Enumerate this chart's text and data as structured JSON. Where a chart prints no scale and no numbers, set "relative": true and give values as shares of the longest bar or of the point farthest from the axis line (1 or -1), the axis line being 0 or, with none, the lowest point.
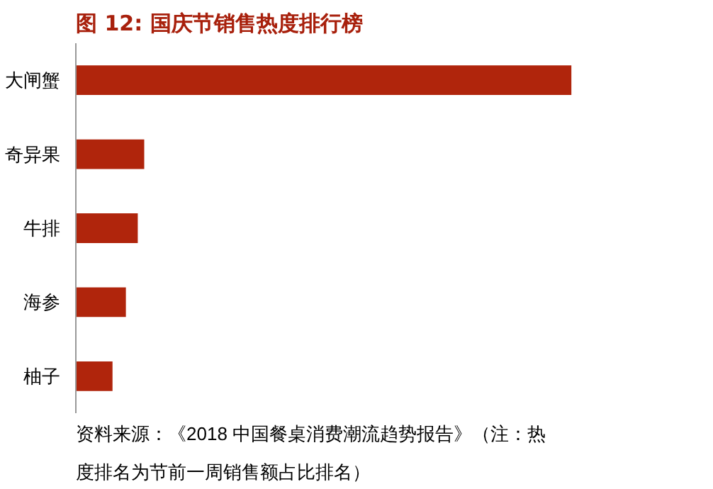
{
  "chart_data": {
    "type": "bar",
    "orientation": "horizontal",
    "relative": true,
    "title": "图 12:  国庆节销售热度排行榜",
    "categories": [
      "大闸蟹",
      "奇异果",
      "牛排",
      "海参",
      "柚子"
    ],
    "values": [
      1,
      0.138,
      0.125,
      0.101,
      0.074
    ],
    "color": "#b0250c",
    "annotations": [
      "资料来源：《2018 中国餐桌消费潮流趋势报告》（注：热度排名为节前一周销售额占比排名）"
    ]
  }
}
